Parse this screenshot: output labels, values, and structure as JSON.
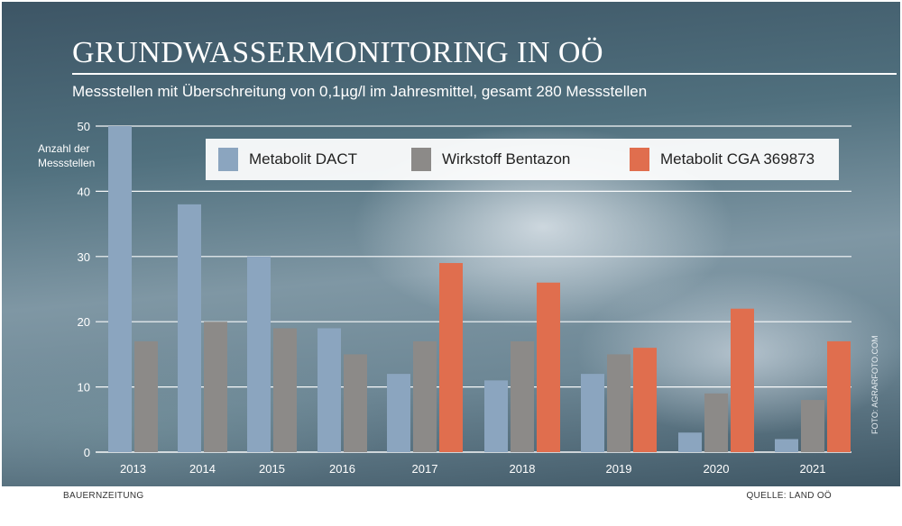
{
  "title": "GRUNDWASSERMONITORING IN OÖ",
  "subtitle": "Messstellen mit Überschreitung von 0,1µg/l im Jahresmittel, gesamt 280 Messstellen",
  "footer_left": "BAUERNZEITUNG",
  "footer_right": "QUELLE: LAND OÖ",
  "photo_credit": "FOTO: AGRARFOTO.COM",
  "colors": {
    "dact": "#8ba5bf",
    "bentazon": "#8c8a88",
    "cga": "#e06e4e"
  },
  "chart_data": {
    "type": "bar",
    "title": "GRUNDWASSERMONITORING IN OÖ",
    "subtitle": "Messstellen mit Überschreitung von 0,1µg/l im Jahresmittel, gesamt 280 Messstellen",
    "ylabel": "Anzahl der Messstellen",
    "xlabel": "",
    "ylim": [
      0,
      50
    ],
    "yticks": [
      0,
      10,
      20,
      30,
      40,
      50
    ],
    "grid": true,
    "legend_position": "top",
    "categories": [
      "2013",
      "2014",
      "2015",
      "2016",
      "2017",
      "2018",
      "2019",
      "2020",
      "2021"
    ],
    "series": [
      {
        "name": "Metabolit DACT",
        "color": "#8ba5bf",
        "values": [
          50,
          38,
          30,
          19,
          12,
          11,
          12,
          3,
          2
        ]
      },
      {
        "name": "Wirkstoff Bentazon",
        "color": "#8c8a88",
        "values": [
          17,
          20,
          19,
          15,
          17,
          17,
          15,
          9,
          8
        ]
      },
      {
        "name": "Metabolit CGA 369873",
        "color": "#e06e4e",
        "values": [
          null,
          null,
          null,
          null,
          29,
          26,
          16,
          22,
          17
        ]
      }
    ]
  }
}
